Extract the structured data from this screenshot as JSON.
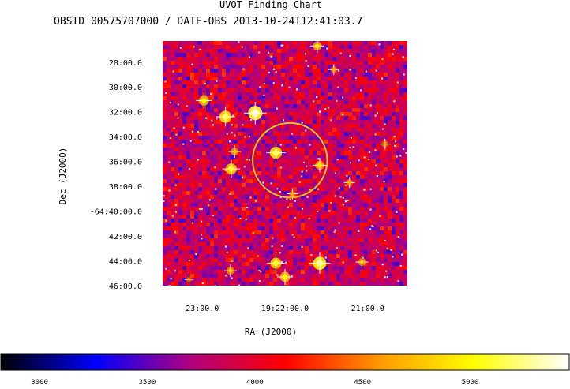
{
  "chart_data": {
    "type": "heatmap",
    "title": "UVOT Finding Chart",
    "subtitle": "OBSID 00575707000 / DATE-OBS 2013-10-24T12:41:03.7",
    "xlabel": "RA (J2000)",
    "ylabel": "Dec (J2000)",
    "x_ticks": [
      {
        "label": "23:00.0",
        "ra_min": 23.0
      },
      {
        "label": "19:22:00.0",
        "ra_min": 22.0
      },
      {
        "label": "21:00.0",
        "ra_min": 21.0
      }
    ],
    "xlim_ra_min": [
      23.48,
      20.52
    ],
    "y_ticks": [
      {
        "label": "28:00.0",
        "dec_min": 28
      },
      {
        "label": "30:00.0",
        "dec_min": 30
      },
      {
        "label": "32:00.0",
        "dec_min": 32
      },
      {
        "label": "34:00.0",
        "dec_min": 34
      },
      {
        "label": "36:00.0",
        "dec_min": 36
      },
      {
        "label": "38:00.0",
        "dec_min": 38
      },
      {
        "label": "-64:40:00.0",
        "dec_min": 40
      },
      {
        "label": "42:00.0",
        "dec_min": 42
      },
      {
        "label": "44:00.0",
        "dec_min": 44
      },
      {
        "label": "46:00.0",
        "dec_min": 46
      }
    ],
    "ylim_dec_min": [
      26.3,
      46.0
    ],
    "target_circle": {
      "ra_min": 21.94,
      "dec_min": 35.9,
      "radius_arcmin": 3.0,
      "color": "#d9c830"
    },
    "stars": [
      {
        "ra_min": 21.61,
        "dec_min": 26.7,
        "peak": 4900
      },
      {
        "ra_min": 22.98,
        "dec_min": 31.1,
        "peak": 5000
      },
      {
        "ra_min": 22.72,
        "dec_min": 32.4,
        "peak": 5200
      },
      {
        "ra_min": 22.36,
        "dec_min": 32.1,
        "peak": 5400
      },
      {
        "ra_min": 22.11,
        "dec_min": 35.3,
        "peak": 5200
      },
      {
        "ra_min": 21.58,
        "dec_min": 36.3,
        "peak": 4900
      },
      {
        "ra_min": 22.65,
        "dec_min": 36.6,
        "peak": 5100
      },
      {
        "ra_min": 22.61,
        "dec_min": 35.2,
        "peak": 4800
      },
      {
        "ra_min": 21.91,
        "dec_min": 38.6,
        "peak": 4700
      },
      {
        "ra_min": 21.22,
        "dec_min": 37.7,
        "peak": 4700
      },
      {
        "ra_min": 22.11,
        "dec_min": 44.2,
        "peak": 5100
      },
      {
        "ra_min": 21.58,
        "dec_min": 44.2,
        "peak": 5300
      },
      {
        "ra_min": 22.0,
        "dec_min": 45.3,
        "peak": 5000
      },
      {
        "ra_min": 21.07,
        "dec_min": 44.1,
        "peak": 4800
      },
      {
        "ra_min": 22.66,
        "dec_min": 44.8,
        "peak": 4800
      },
      {
        "ra_min": 23.16,
        "dec_min": 45.5,
        "peak": 4600
      },
      {
        "ra_min": 20.79,
        "dec_min": 34.6,
        "peak": 4700
      },
      {
        "ra_min": 21.41,
        "dec_min": 28.6,
        "peak": 4700
      }
    ],
    "colorbar": {
      "range": [
        2820,
        5460
      ],
      "ticks": [
        3000,
        3500,
        4000,
        4500,
        5000
      ],
      "stops": [
        "#000000",
        "#0000ff",
        "#b00080",
        "#ff0000",
        "#ff9900",
        "#ffff00",
        "#ffffff"
      ],
      "placement": "bottom"
    }
  }
}
